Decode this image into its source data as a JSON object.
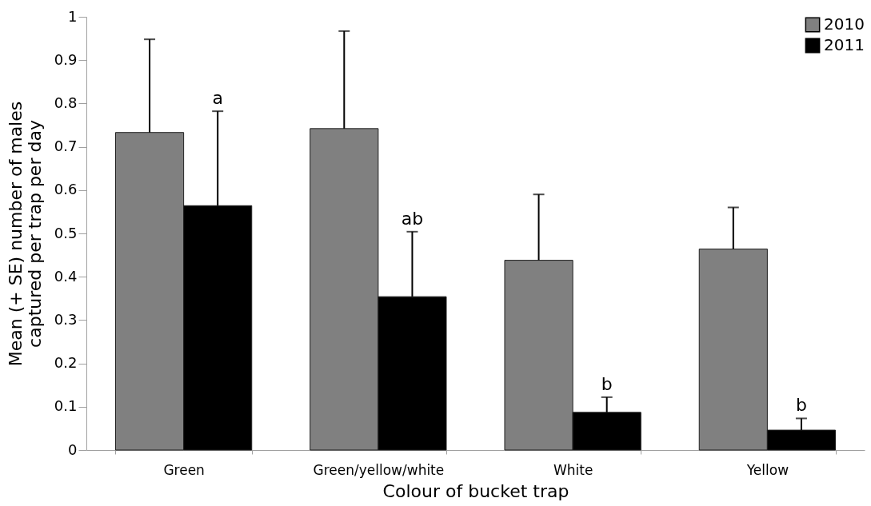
{
  "chart_data": {
    "type": "bar",
    "xlabel": "Colour of bucket trap",
    "ylabel": "Mean (+ SE) number of males\ncaptured per trap per day",
    "categories": [
      "Green",
      "Green/yellow/white",
      "White",
      "Yellow"
    ],
    "series": [
      {
        "name": "2010",
        "color": "#808080",
        "values": [
          0.733,
          0.742,
          0.438,
          0.464
        ],
        "errors": [
          [
            0.733,
            0.948
          ],
          [
            0.742,
            0.967
          ],
          [
            0.438,
            0.59
          ],
          [
            0.464,
            0.56
          ]
        ]
      },
      {
        "name": "2011",
        "color": "#000000",
        "values": [
          0.564,
          0.354,
          0.087,
          0.046
        ],
        "errors": [
          [
            0.564,
            0.782
          ],
          [
            0.354,
            0.504
          ],
          [
            0.087,
            0.122
          ],
          [
            0.046,
            0.073
          ]
        ]
      }
    ],
    "ylim": [
      0,
      1
    ],
    "yticks": [
      {
        "value": 0,
        "label": "0"
      },
      0.1,
      0.2,
      0.3,
      0.4,
      0.5,
      0.6,
      0.7,
      0.8,
      0.9,
      {
        "value": 1,
        "label": "1"
      }
    ],
    "annotations": [
      "a",
      "ab",
      "b",
      "b"
    ],
    "grid": false,
    "legend": "top right"
  }
}
